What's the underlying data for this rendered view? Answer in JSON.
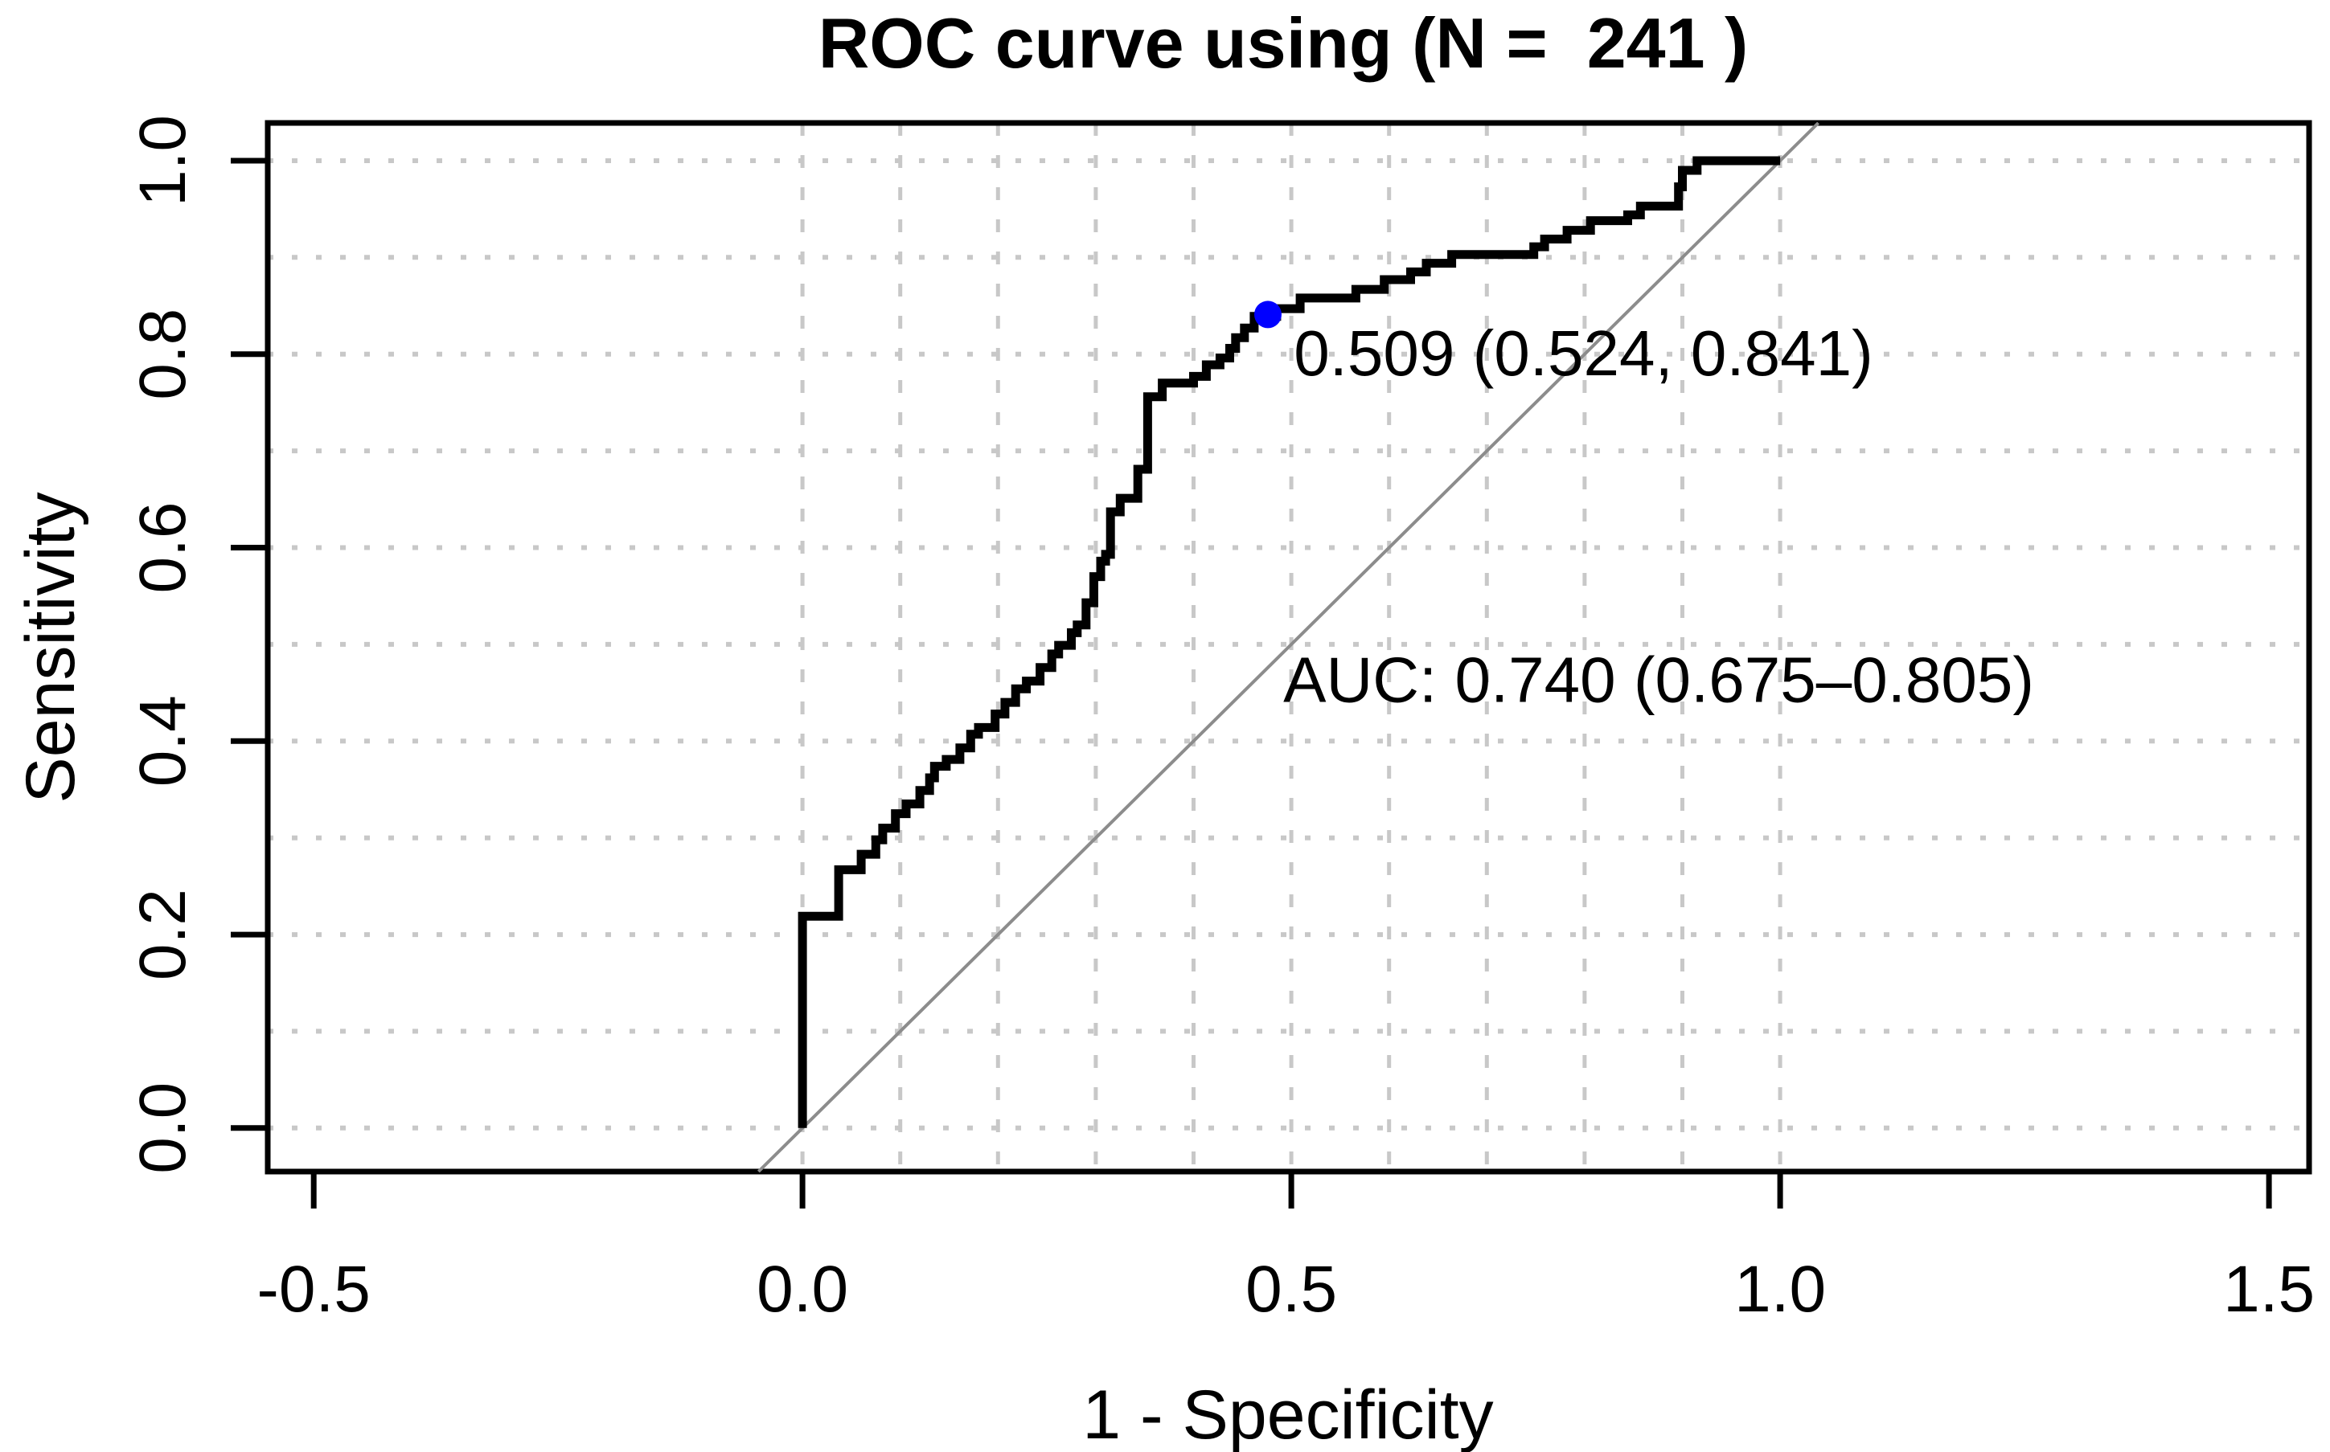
{
  "figure": {
    "background": "#ffffff",
    "text_color": "#000000"
  },
  "chart_data": {
    "type": "line",
    "title": "ROC curve using (N =  241 )",
    "n": 241,
    "xlabel": "1 - Specificity",
    "ylabel": "Sensitivity",
    "xlim": [
      -0.547,
      1.541
    ],
    "ylim": [
      -0.045,
      1.039
    ],
    "x_ticks": [
      -0.5,
      0.0,
      0.5,
      1.0,
      1.5
    ],
    "x_tick_labels": [
      "-0.5",
      "0.0",
      "0.5",
      "1.0",
      "1.5"
    ],
    "y_ticks": [
      0.0,
      0.2,
      0.4,
      0.6,
      0.8,
      1.0
    ],
    "y_tick_labels": [
      "0.0",
      "0.2",
      "0.4",
      "0.6",
      "0.8",
      "1.0"
    ],
    "grid": {
      "on": true,
      "style": "dotted",
      "color": "#c8c8c8",
      "interval": 0.1,
      "x_span": [
        0,
        1
      ],
      "y_span": [
        0,
        1
      ]
    },
    "diagonal": {
      "color": "#8c8c8c",
      "from": [
        -0.045,
        -0.045
      ],
      "to": [
        1.039,
        1.039
      ]
    },
    "roc_curve": {
      "color": "#000000",
      "line_width": 11,
      "points": [
        [
          0.0,
          0.0
        ],
        [
          0.0,
          0.219
        ],
        [
          0.037,
          0.219
        ],
        [
          0.037,
          0.267
        ],
        [
          0.06,
          0.267
        ],
        [
          0.06,
          0.283
        ],
        [
          0.075,
          0.283
        ],
        [
          0.075,
          0.298
        ],
        [
          0.082,
          0.298
        ],
        [
          0.082,
          0.31
        ],
        [
          0.095,
          0.31
        ],
        [
          0.095,
          0.325
        ],
        [
          0.106,
          0.325
        ],
        [
          0.106,
          0.335
        ],
        [
          0.12,
          0.335
        ],
        [
          0.12,
          0.349
        ],
        [
          0.13,
          0.349
        ],
        [
          0.13,
          0.362
        ],
        [
          0.135,
          0.362
        ],
        [
          0.135,
          0.374
        ],
        [
          0.147,
          0.374
        ],
        [
          0.147,
          0.381
        ],
        [
          0.161,
          0.381
        ],
        [
          0.161,
          0.393
        ],
        [
          0.172,
          0.393
        ],
        [
          0.172,
          0.407
        ],
        [
          0.18,
          0.407
        ],
        [
          0.18,
          0.414
        ],
        [
          0.197,
          0.414
        ],
        [
          0.197,
          0.428
        ],
        [
          0.207,
          0.428
        ],
        [
          0.207,
          0.44
        ],
        [
          0.218,
          0.44
        ],
        [
          0.218,
          0.454
        ],
        [
          0.229,
          0.454
        ],
        [
          0.229,
          0.462
        ],
        [
          0.243,
          0.462
        ],
        [
          0.243,
          0.476
        ],
        [
          0.255,
          0.476
        ],
        [
          0.255,
          0.49
        ],
        [
          0.262,
          0.49
        ],
        [
          0.262,
          0.499
        ],
        [
          0.275,
          0.499
        ],
        [
          0.275,
          0.512
        ],
        [
          0.281,
          0.512
        ],
        [
          0.281,
          0.52
        ],
        [
          0.29,
          0.52
        ],
        [
          0.29,
          0.543
        ],
        [
          0.298,
          0.543
        ],
        [
          0.298,
          0.57
        ],
        [
          0.305,
          0.57
        ],
        [
          0.305,
          0.586
        ],
        [
          0.31,
          0.586
        ],
        [
          0.31,
          0.593
        ],
        [
          0.315,
          0.593
        ],
        [
          0.315,
          0.637
        ],
        [
          0.325,
          0.637
        ],
        [
          0.325,
          0.651
        ],
        [
          0.343,
          0.651
        ],
        [
          0.343,
          0.681
        ],
        [
          0.353,
          0.681
        ],
        [
          0.353,
          0.756
        ],
        [
          0.368,
          0.756
        ],
        [
          0.368,
          0.77
        ],
        [
          0.4,
          0.77
        ],
        [
          0.4,
          0.777
        ],
        [
          0.413,
          0.777
        ],
        [
          0.413,
          0.789
        ],
        [
          0.427,
          0.789
        ],
        [
          0.427,
          0.796
        ],
        [
          0.437,
          0.796
        ],
        [
          0.437,
          0.806
        ],
        [
          0.443,
          0.806
        ],
        [
          0.443,
          0.817
        ],
        [
          0.452,
          0.817
        ],
        [
          0.452,
          0.827
        ],
        [
          0.462,
          0.827
        ],
        [
          0.462,
          0.839
        ],
        [
          0.485,
          0.839
        ],
        [
          0.485,
          0.847
        ],
        [
          0.509,
          0.847
        ],
        [
          0.509,
          0.858
        ],
        [
          0.566,
          0.858
        ],
        [
          0.566,
          0.867
        ],
        [
          0.595,
          0.867
        ],
        [
          0.595,
          0.877
        ],
        [
          0.622,
          0.877
        ],
        [
          0.622,
          0.885
        ],
        [
          0.638,
          0.885
        ],
        [
          0.638,
          0.894
        ],
        [
          0.664,
          0.894
        ],
        [
          0.664,
          0.903
        ],
        [
          0.748,
          0.903
        ],
        [
          0.748,
          0.911
        ],
        [
          0.759,
          0.911
        ],
        [
          0.759,
          0.919
        ],
        [
          0.782,
          0.919
        ],
        [
          0.782,
          0.928
        ],
        [
          0.806,
          0.928
        ],
        [
          0.806,
          0.938
        ],
        [
          0.844,
          0.938
        ],
        [
          0.844,
          0.944
        ],
        [
          0.857,
          0.944
        ],
        [
          0.857,
          0.953
        ],
        [
          0.896,
          0.953
        ],
        [
          0.896,
          0.973
        ],
        [
          0.9,
          0.973
        ],
        [
          0.9,
          0.99
        ],
        [
          0.915,
          0.99
        ],
        [
          0.915,
          1.0
        ],
        [
          1.0,
          1.0
        ]
      ]
    },
    "best_threshold": {
      "label": "0.509 (0.524, 0.841)",
      "threshold": 0.509,
      "specificity": 0.524,
      "sensitivity": 0.841,
      "point": [
        0.476,
        0.841
      ],
      "point_radius": 17,
      "label_pos": [
        0.5025,
        0.778
      ],
      "color": "#0000ff"
    },
    "auc_annotation": {
      "text": "AUC: 0.740 (0.675–0.805)",
      "auc": 0.74,
      "ci_lower": 0.675,
      "ci_upper": 0.805,
      "pos": [
        0.4917,
        0.4407
      ],
      "color": "#000000"
    }
  }
}
